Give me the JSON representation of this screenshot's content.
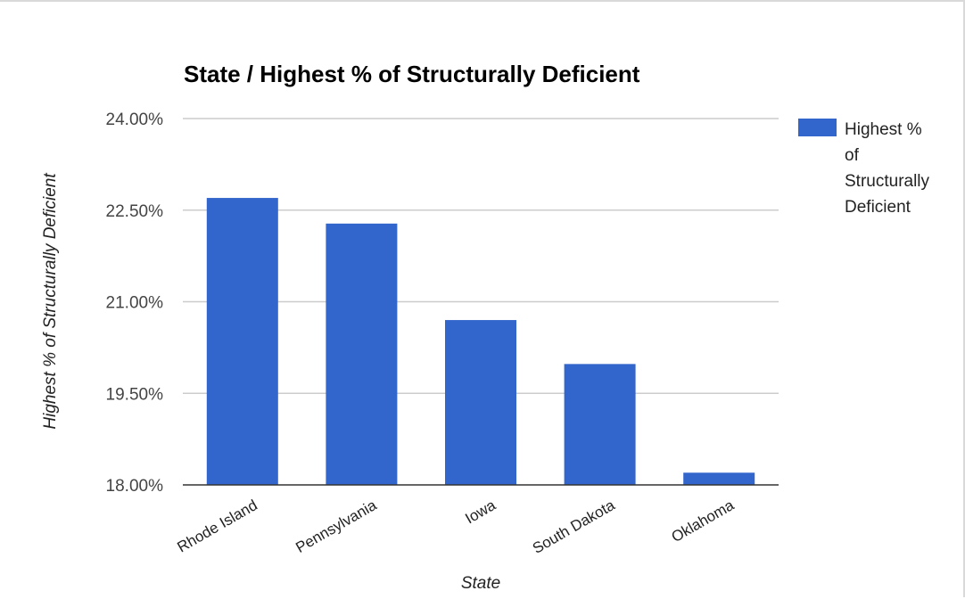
{
  "chart_data": {
    "type": "bar",
    "title": "State / Highest % of Structurally Deficient",
    "xlabel": "State",
    "ylabel": "Highest % of Structurally Deficient",
    "categories": [
      "Rhode Island",
      "Pennsylvania",
      "Iowa",
      "South Dakota",
      "Oklahoma"
    ],
    "series": [
      {
        "name": "Highest % of Structurally Deficient",
        "values": [
          22.7,
          22.28,
          20.7,
          19.98,
          18.2
        ],
        "color": "#3366cc"
      }
    ],
    "ylim": [
      18,
      24
    ],
    "yticks": [
      {
        "value": 24,
        "label": "24.00%"
      },
      {
        "value": 22.5,
        "label": "22.50%"
      },
      {
        "value": 21,
        "label": "21.00%"
      },
      {
        "value": 19.5,
        "label": "19.50%"
      },
      {
        "value": 18,
        "label": "18.00%"
      }
    ],
    "legend": {
      "position": "right",
      "lines": [
        "Highest %",
        "of",
        "Structurally",
        "Deficient"
      ]
    },
    "grid": true
  }
}
